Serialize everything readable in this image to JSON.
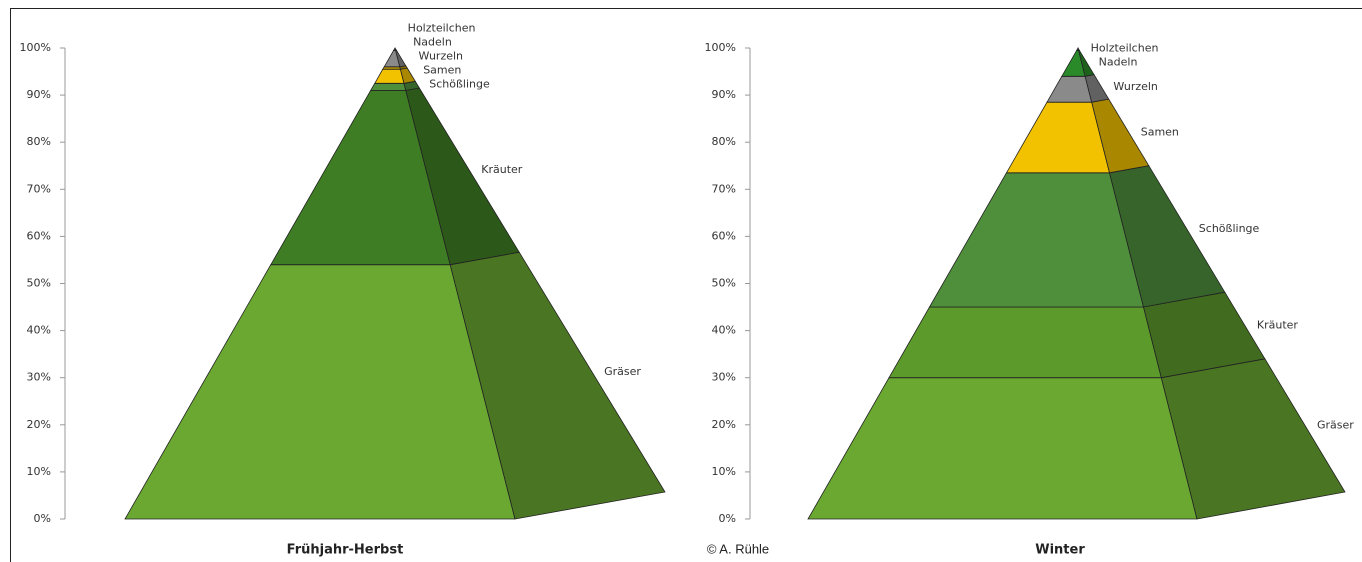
{
  "chart_data": [
    {
      "type": "pyramid",
      "categories": [
        "Frühjahr-Herbst"
      ],
      "series": [
        {
          "name": "Gräser",
          "color": "#6aa832",
          "values": [
            54
          ]
        },
        {
          "name": "Kräuter",
          "color": "#3f7d24",
          "values": [
            37
          ]
        },
        {
          "name": "Schößlinge",
          "color": "#4f8f3c",
          "values": [
            1.5
          ]
        },
        {
          "name": "Samen",
          "color": "#f2c200",
          "values": [
            3
          ]
        },
        {
          "name": "Wurzeln",
          "color": "#c9a100",
          "values": [
            0.5
          ]
        },
        {
          "name": "Nadeln",
          "color": "#8a8a8a",
          "values": [
            3.5
          ]
        },
        {
          "name": "Holzteilchen",
          "color": "#555555",
          "values": [
            0.5
          ]
        }
      ],
      "ylim": [
        0,
        100
      ],
      "yticks": [
        {
          "value": 0,
          "label": "0%"
        },
        {
          "value": 10,
          "label": "10%"
        },
        {
          "value": 20,
          "label": "20%"
        },
        {
          "value": 30,
          "label": "30%"
        },
        {
          "value": 40,
          "label": "40%"
        },
        {
          "value": 50,
          "label": "50%"
        },
        {
          "value": 60,
          "label": "60%"
        },
        {
          "value": 70,
          "label": "70%"
        },
        {
          "value": 80,
          "label": "80%"
        },
        {
          "value": 90,
          "label": "90%"
        },
        {
          "value": 100,
          "label": "100%"
        }
      ]
    },
    {
      "type": "pyramid",
      "categories": [
        "Winter"
      ],
      "series": [
        {
          "name": "Gräser",
          "color": "#6aa832",
          "values": [
            30
          ]
        },
        {
          "name": "Kräuter",
          "color": "#5d9a2c",
          "values": [
            15
          ]
        },
        {
          "name": "Schößlinge",
          "color": "#4f8f3c",
          "values": [
            28.5
          ]
        },
        {
          "name": "Samen",
          "color": "#f2c200",
          "values": [
            15
          ]
        },
        {
          "name": "Wurzeln",
          "color": "#8a8a8a",
          "values": [
            5.5
          ]
        },
        {
          "name": "Nadeln",
          "color": "#2a8a2a",
          "values": [
            5.5
          ]
        },
        {
          "name": "Holzteilchen",
          "color": "#1f6b1f",
          "values": [
            0.5
          ]
        }
      ],
      "ylim": [
        0,
        100
      ],
      "yticks": [
        {
          "value": 0,
          "label": "0%"
        },
        {
          "value": 10,
          "label": "10%"
        },
        {
          "value": 20,
          "label": "20%"
        },
        {
          "value": 30,
          "label": "30%"
        },
        {
          "value": 40,
          "label": "40%"
        },
        {
          "value": 50,
          "label": "50%"
        },
        {
          "value": 60,
          "label": "60%"
        },
        {
          "value": 70,
          "label": "70%"
        },
        {
          "value": 80,
          "label": "80%"
        },
        {
          "value": 90,
          "label": "90%"
        },
        {
          "value": 100,
          "label": "100%"
        }
      ]
    }
  ],
  "credit": "© A. Rühle"
}
